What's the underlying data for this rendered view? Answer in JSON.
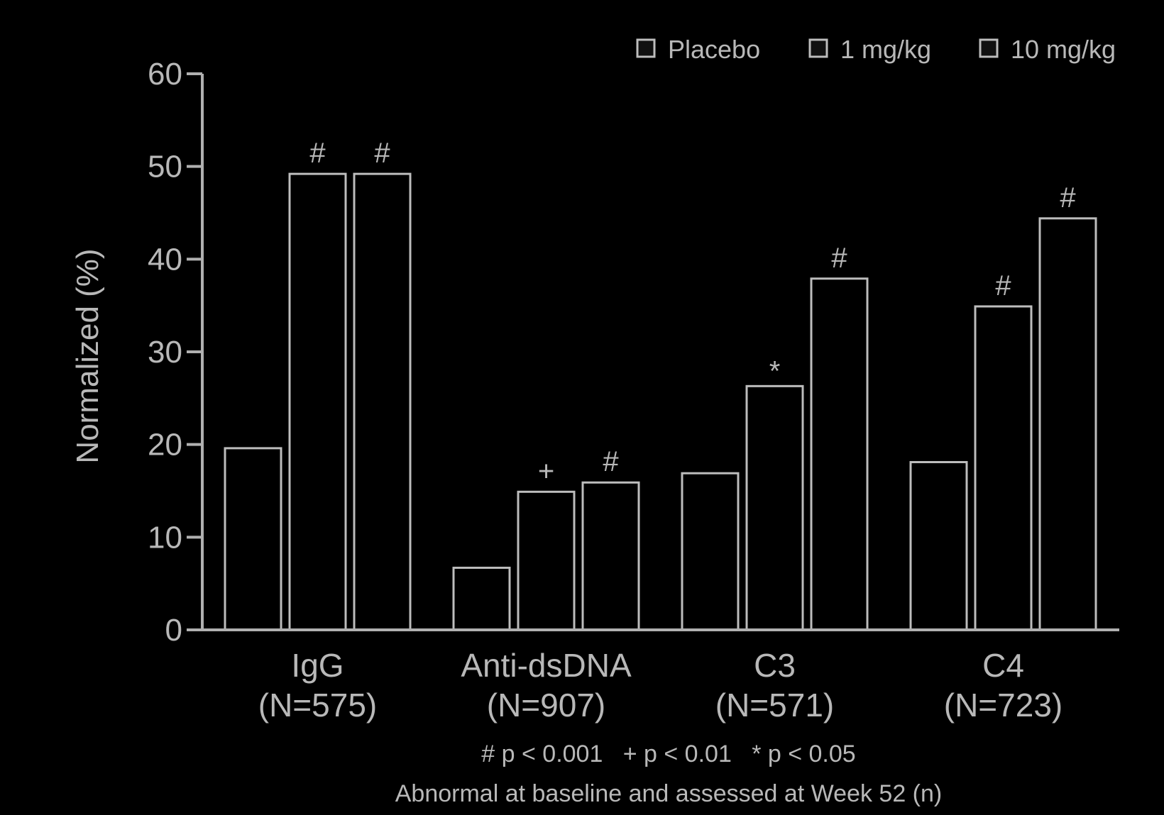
{
  "chart_data": {
    "type": "bar",
    "categories": [
      "IgG",
      "Anti-dsDNA",
      "C3",
      "C4"
    ],
    "category_n": [
      "(N=575)",
      "(N=907)",
      "(N=571)",
      "(N=723)"
    ],
    "series": [
      {
        "name": "Placebo",
        "values": [
          19.6,
          6.7,
          16.9,
          18.1
        ],
        "markers": [
          "",
          "",
          "",
          ""
        ]
      },
      {
        "name": "1 mg/kg",
        "values": [
          49.2,
          14.9,
          26.3,
          34.9
        ],
        "markers": [
          "#",
          "+",
          "*",
          "#"
        ]
      },
      {
        "name": "10 mg/kg",
        "values": [
          49.2,
          15.9,
          37.9,
          44.4
        ],
        "markers": [
          "#",
          "#",
          "#",
          "#"
        ]
      }
    ],
    "ylabel": "Normalized (%)",
    "xlabel": "Abnormal at baseline and assessed at Week 52 (n)",
    "significance_note": "# p < 0.001   + p < 0.01   * p < 0.05",
    "ylim": [
      0,
      60
    ],
    "yticks": [
      0,
      10,
      20,
      30,
      40,
      50,
      60
    ],
    "legend_position": "top-right",
    "grid": false
  },
  "colors": {
    "background": "#000000",
    "bar_fill": "#000000",
    "bar_stroke": "#bdbdbd",
    "text": "#b8b8b8"
  }
}
